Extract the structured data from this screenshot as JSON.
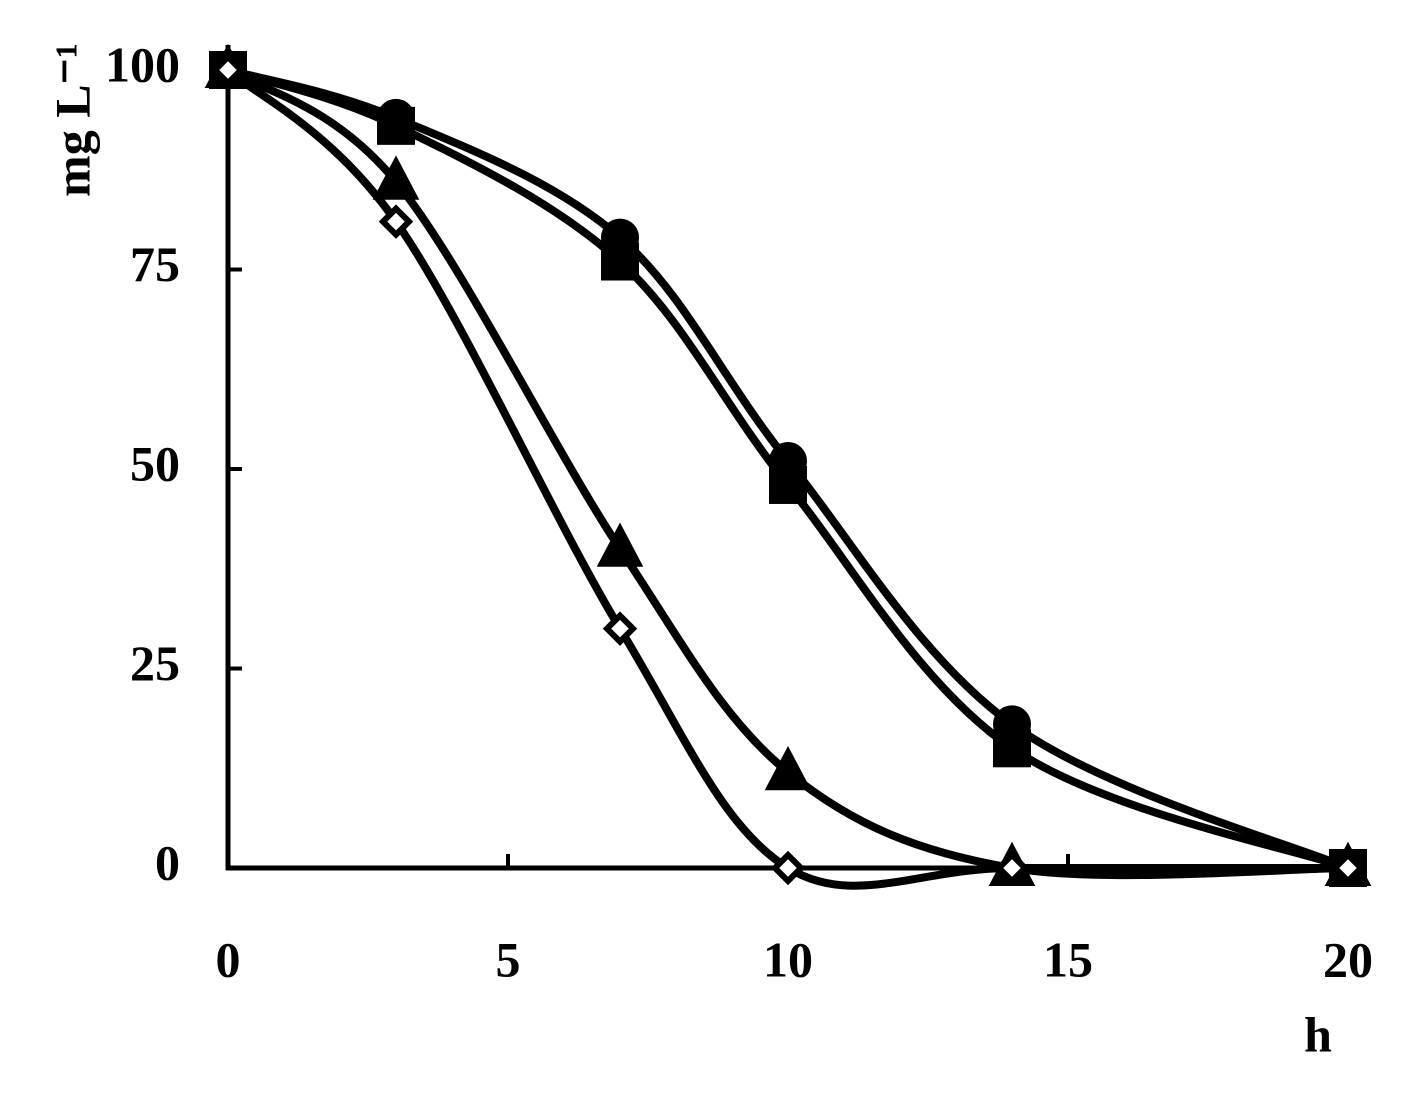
{
  "chart_data": {
    "type": "line",
    "x": [
      0,
      3,
      7,
      10,
      14,
      20
    ],
    "series": [
      {
        "marker": "circle",
        "color": "#000000",
        "values": [
          100,
          94,
          79,
          51,
          18,
          0
        ]
      },
      {
        "marker": "square",
        "color": "#000000",
        "values": [
          100,
          93,
          76,
          48,
          15,
          0
        ]
      },
      {
        "marker": "triangle",
        "color": "#000000",
        "values": [
          100,
          86,
          40,
          12,
          0,
          0
        ]
      },
      {
        "marker": "diamond",
        "color": "#000000",
        "values": [
          100,
          81,
          30,
          0,
          0,
          0
        ]
      }
    ],
    "xlim": [
      0,
      20
    ],
    "ylim": [
      0,
      100
    ],
    "xticks": [
      0,
      5,
      10,
      15,
      20
    ],
    "yticks": [
      0,
      25,
      50,
      75,
      100
    ],
    "xlabel": "h",
    "ylabel": "mg L⁻¹"
  }
}
